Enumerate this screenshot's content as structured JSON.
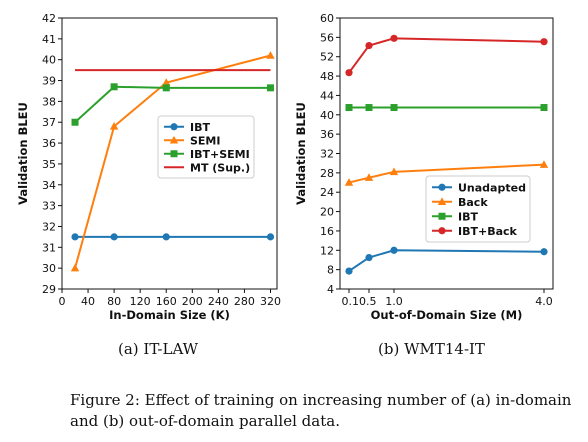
{
  "chart_data": [
    {
      "type": "line",
      "xlabel": "In-Domain Size (K)",
      "ylabel": "Validation BLEU",
      "xlim": [
        0,
        330
      ],
      "ylim": [
        29,
        42
      ],
      "xticks": [
        0,
        40,
        80,
        120,
        160,
        200,
        240,
        280,
        320
      ],
      "yticks": [
        29,
        30,
        31,
        32,
        33,
        34,
        35,
        36,
        37,
        38,
        39,
        40,
        41,
        42
      ],
      "xtick_labels": [
        "0",
        "40",
        "80",
        "120",
        "160",
        "200",
        "240",
        "280",
        "320"
      ],
      "legend_position": "center-right",
      "grid": false,
      "series": [
        {
          "name": "IBT",
          "color": "#1f77b4",
          "marker": "circle",
          "x": [
            20,
            80,
            160,
            320
          ],
          "y": [
            31.5,
            31.5,
            31.5,
            31.5
          ]
        },
        {
          "name": "SEMI",
          "color": "#ff7f0e",
          "marker": "triangle",
          "x": [
            20,
            80,
            160,
            320
          ],
          "y": [
            30.0,
            36.8,
            38.9,
            40.2
          ]
        },
        {
          "name": "IBT+SEMI",
          "color": "#2ca02c",
          "marker": "square",
          "x": [
            20,
            80,
            160,
            320
          ],
          "y": [
            37.0,
            38.7,
            38.65,
            38.65
          ]
        },
        {
          "name": "MT (Sup.)",
          "color": "#d62728",
          "marker": "none",
          "x": [
            20,
            80,
            160,
            320
          ],
          "y": [
            39.5,
            39.5,
            39.5,
            39.5
          ]
        }
      ]
    },
    {
      "type": "line",
      "xlabel": "Out-of-Domain Size (M)",
      "ylabel": "Validation BLEU",
      "xlim": [
        -0.08,
        4.18
      ],
      "ylim": [
        4,
        60
      ],
      "xticks": [
        0.1,
        0.5,
        1.0,
        4.0
      ],
      "yticks": [
        4,
        8,
        12,
        16,
        20,
        24,
        28,
        32,
        36,
        40,
        44,
        48,
        52,
        56,
        60
      ],
      "xtick_labels": [
        "0.10.5",
        "",
        "1.0",
        "4.0"
      ],
      "legend_position": "center-right",
      "grid": false,
      "series": [
        {
          "name": "Unadapted",
          "color": "#1f77b4",
          "marker": "circle",
          "x": [
            0.1,
            0.5,
            1.0,
            4.0
          ],
          "y": [
            7.7,
            10.5,
            12.0,
            11.7
          ]
        },
        {
          "name": "Back",
          "color": "#ff7f0e",
          "marker": "triangle",
          "x": [
            0.1,
            0.5,
            1.0,
            4.0
          ],
          "y": [
            26.0,
            27.0,
            28.2,
            29.7
          ]
        },
        {
          "name": "IBT",
          "color": "#2ca02c",
          "marker": "square",
          "x": [
            0.1,
            0.5,
            1.0,
            4.0
          ],
          "y": [
            41.5,
            41.5,
            41.5,
            41.5
          ]
        },
        {
          "name": "IBT+Back",
          "color": "#d62728",
          "marker": "circle",
          "x": [
            0.1,
            0.5,
            1.0,
            4.0
          ],
          "y": [
            48.7,
            54.3,
            55.8,
            55.1
          ]
        }
      ]
    }
  ],
  "captions": {
    "a": "(a) IT-LAW",
    "b": "(b) WMT14-IT",
    "figure": "Figure 2: Effect of training on increasing number of (a) in-domain and (b) out-of-domain parallel data."
  }
}
